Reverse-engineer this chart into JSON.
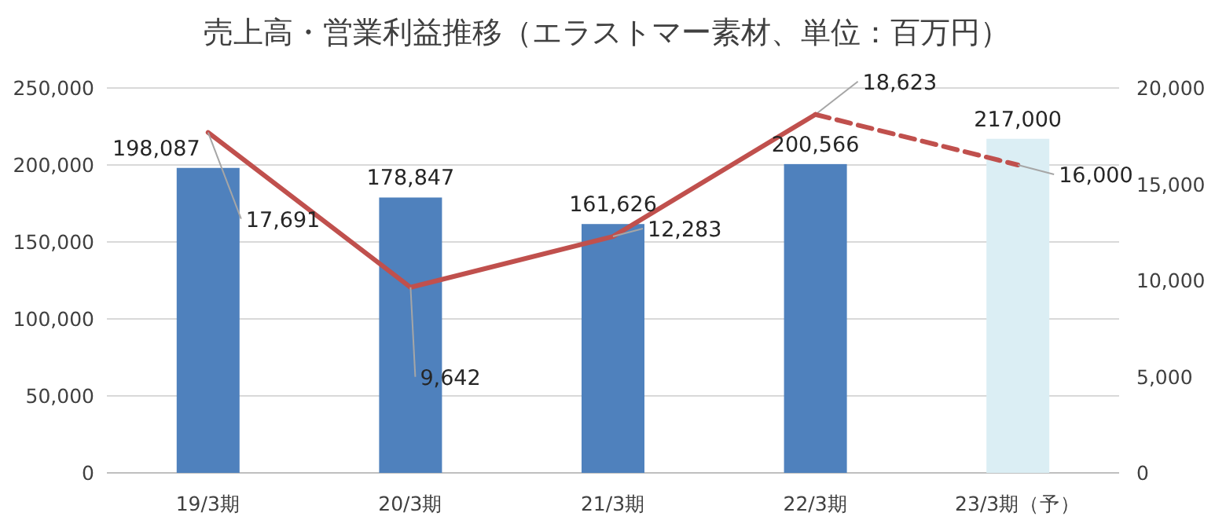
{
  "chart_data": {
    "type": "bar",
    "title": "売上高・営業利益推移（エラストマー素材、単位：百万円）",
    "categories": [
      "19/3期",
      "20/3期",
      "21/3期",
      "22/3期",
      "23/3期（予）"
    ],
    "series": [
      {
        "colors": [
          "#4f81bd",
          "#4f81bd",
          "#4f81bd",
          "#4f81bd",
          "#dbeef4"
        ],
        "values": [
          198087,
          178847,
          161626,
          200566,
          217000
        ],
        "value_labels": [
          "198,087",
          "178,847",
          "161,626",
          "200,566",
          "217,000"
        ]
      },
      {
        "type": "line",
        "axis": "y2",
        "color": "#c0504d",
        "line_style": "solid",
        "values": [
          17691,
          9642,
          12283,
          18623,
          null
        ],
        "value_labels": [
          "17,691",
          "9,642",
          "12,283",
          "18,623",
          null
        ]
      },
      {
        "type": "line",
        "axis": "y2",
        "color": "#c0504d",
        "line_style": "dashed",
        "values": [
          null,
          null,
          null,
          18623,
          16000
        ],
        "value_labels": [
          null,
          null,
          null,
          null,
          "16,000"
        ]
      }
    ],
    "ylim": [
      0,
      250000
    ],
    "yticks": [
      {
        "value": 0,
        "label": "0"
      },
      {
        "value": 50000,
        "label": "50,000"
      },
      {
        "value": 100000,
        "label": "100,000"
      },
      {
        "value": 150000,
        "label": "150,000"
      },
      {
        "value": 200000,
        "label": "200,000"
      },
      {
        "value": 250000,
        "label": "250,000"
      }
    ],
    "y2lim": [
      0,
      20000
    ],
    "y2ticks": [
      {
        "value": 0,
        "label": "0"
      },
      {
        "value": 5000,
        "label": "5,000"
      },
      {
        "value": 10000,
        "label": "10,000"
      },
      {
        "value": 15000,
        "label": "15,000"
      },
      {
        "value": 20000,
        "label": "20,000"
      }
    ],
    "grid": "y",
    "legend": false
  }
}
